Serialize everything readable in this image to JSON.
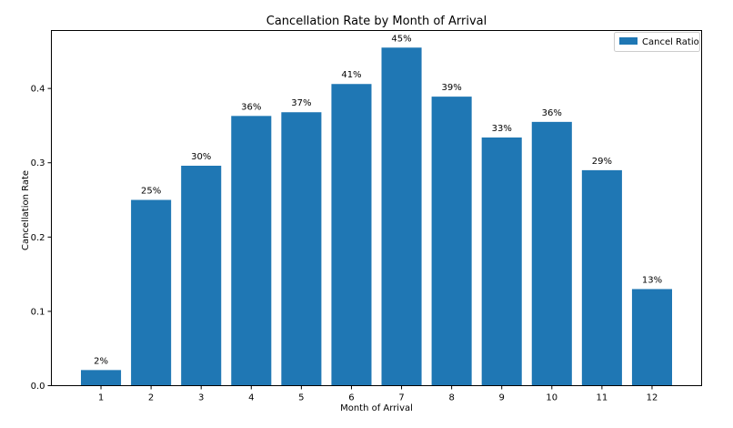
{
  "chart_data": {
    "type": "bar",
    "title": "Cancellation Rate by Month of Arrival",
    "xlabel": "Month of Arrival",
    "ylabel": "Cancellation Rate",
    "categories": [
      "1",
      "2",
      "3",
      "4",
      "5",
      "6",
      "7",
      "8",
      "9",
      "10",
      "11",
      "12"
    ],
    "values": [
      0.021,
      0.25,
      0.296,
      0.363,
      0.368,
      0.406,
      0.455,
      0.389,
      0.334,
      0.355,
      0.29,
      0.13
    ],
    "data_labels": [
      "2%",
      "25%",
      "30%",
      "36%",
      "37%",
      "41%",
      "45%",
      "39%",
      "33%",
      "36%",
      "29%",
      "13%"
    ],
    "y_ticks": [
      0.0,
      0.1,
      0.2,
      0.3,
      0.4
    ],
    "y_tick_labels": [
      "0.0",
      "0.1",
      "0.2",
      "0.3",
      "0.4"
    ],
    "ylim": [
      0,
      0.478
    ],
    "grid": false,
    "legend": {
      "position": "top-right",
      "entries": [
        {
          "label": "Cancel Ratio",
          "color": "#1f77b4"
        }
      ]
    },
    "colors": {
      "bar": "#1f77b4",
      "axis": "#000000"
    }
  }
}
